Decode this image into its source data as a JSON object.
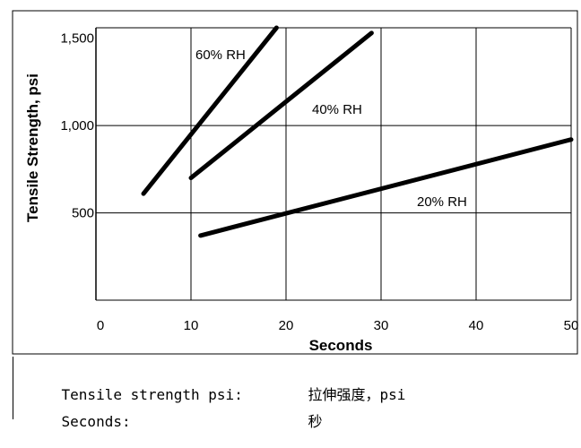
{
  "chart_data": {
    "type": "line",
    "xlabel": "Seconds",
    "ylabel": "Tensile Strength, psi",
    "x_ticks": [
      0,
      10,
      20,
      30,
      40,
      50
    ],
    "x_tick_labels": [
      "0",
      "10",
      "20",
      "30",
      "40",
      "50"
    ],
    "y_ticks": [
      500,
      1000,
      1500
    ],
    "y_tick_labels": [
      "500",
      "1,000",
      "1,500"
    ],
    "xlim": [
      0,
      50
    ],
    "ylim": [
      0,
      1560
    ],
    "grid": true,
    "series": [
      {
        "name": "60% RH",
        "x": [
          5,
          19
        ],
        "y": [
          610,
          1560
        ]
      },
      {
        "name": "40% RH",
        "x": [
          10,
          29
        ],
        "y": [
          700,
          1530
        ]
      },
      {
        "name": "20% RH",
        "x": [
          11,
          50
        ],
        "y": [
          370,
          920
        ]
      }
    ]
  },
  "glossary": [
    {
      "term": "Tensile strength psi:",
      "definition": "拉伸强度，psi"
    },
    {
      "term": "Seconds:",
      "definition": "秒"
    }
  ]
}
